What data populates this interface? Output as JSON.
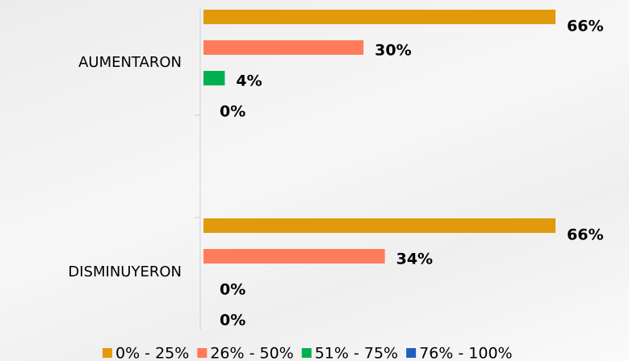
{
  "chart_data": {
    "type": "bar",
    "orientation": "horizontal",
    "categories": [
      "AUMENTARON",
      "DISMINUYERON"
    ],
    "series": [
      {
        "name": "0% - 25%",
        "color": "#e09a0b",
        "values": [
          66,
          66
        ],
        "value_labels": [
          "66%",
          "66%"
        ]
      },
      {
        "name": "26% - 50%",
        "color": "#ff7b5a",
        "values": [
          30,
          34
        ],
        "value_labels": [
          "30%",
          "34%"
        ]
      },
      {
        "name": "51% - 75%",
        "color": "#00b050",
        "values": [
          4,
          0
        ],
        "value_labels": [
          "4%",
          "0%"
        ]
      },
      {
        "name": "76% - 100%",
        "color": "#1f5fbf",
        "values": [
          0,
          0
        ],
        "value_labels": [
          "0%",
          "0%"
        ]
      }
    ],
    "legend": "bottom"
  }
}
